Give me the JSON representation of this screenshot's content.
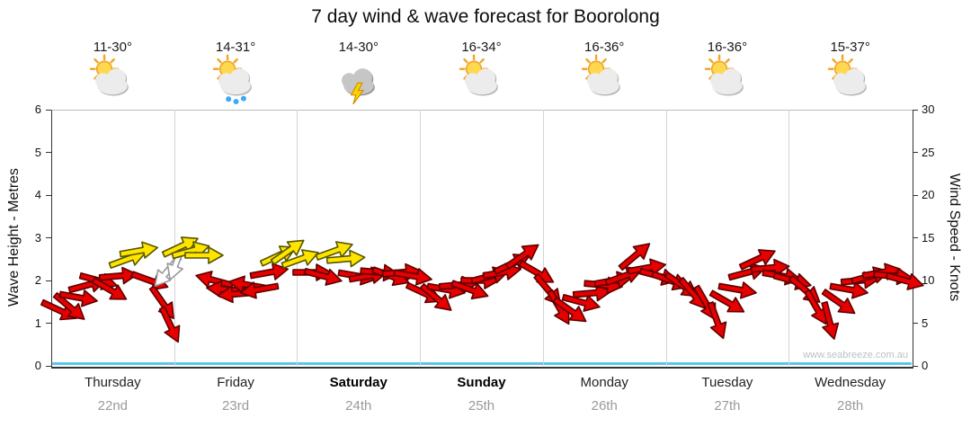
{
  "watermark": "www.seabreeze.com.au",
  "chart_data": {
    "type": "scatter",
    "subtype": "wind-arrow-forecast",
    "title": "7 day wind & wave forecast for Boorolong",
    "ylabel_left": "Wave Height - Metres",
    "ylim_left": [
      0,
      6
    ],
    "left_ticks": [
      0,
      1,
      2,
      3,
      4,
      5,
      6
    ],
    "ylabel_right": "Wind Speed - Knots",
    "ylim_right": [
      0,
      30
    ],
    "right_ticks": [
      0,
      5,
      10,
      15,
      20,
      25,
      30
    ],
    "grid": "vertical day separators only",
    "x_days": [
      {
        "name": "Thursday",
        "date": "22nd",
        "temp": "11-30°",
        "icon": "partly-cloudy",
        "bold": false
      },
      {
        "name": "Friday",
        "date": "23rd",
        "temp": "14-31°",
        "icon": "showers",
        "bold": false
      },
      {
        "name": "Saturday",
        "date": "24th",
        "temp": "14-30°",
        "icon": "storm",
        "bold": true
      },
      {
        "name": "Sunday",
        "date": "25th",
        "temp": "16-34°",
        "icon": "partly-cloudy",
        "bold": true
      },
      {
        "name": "Monday",
        "date": "26th",
        "temp": "16-36°",
        "icon": "partly-cloudy",
        "bold": false
      },
      {
        "name": "Tuesday",
        "date": "27th",
        "temp": "16-36°",
        "icon": "partly-cloudy",
        "bold": false
      },
      {
        "name": "Wednesday",
        "date": "28th",
        "temp": "15-37°",
        "icon": "partly-cloudy",
        "bold": false
      }
    ],
    "wave_height_m": {
      "shape": "flat",
      "value_m": 0.05
    },
    "wind_arrows": {
      "units": "knots",
      "point_format": "[t_days_from_start, speed_knots, direction_deg_cw_from_east, color_index]",
      "color_names": [
        "red",
        "yellow",
        "white"
      ],
      "color_styles": [
        {
          "fill": "#e60000",
          "stroke": "#5c0000"
        },
        {
          "fill": "#ffe400",
          "stroke": "#555500"
        },
        {
          "fill": "#ffffff",
          "stroke": "#999999"
        }
      ],
      "points": [
        [
          0.06,
          6.5,
          25,
          0
        ],
        [
          0.14,
          7,
          40,
          0
        ],
        [
          0.22,
          8,
          10,
          0
        ],
        [
          0.3,
          9.5,
          -15,
          0
        ],
        [
          0.38,
          10,
          15,
          0
        ],
        [
          0.47,
          9,
          30,
          0
        ],
        [
          0.55,
          10.5,
          -5,
          0
        ],
        [
          0.63,
          12.5,
          -20,
          1
        ],
        [
          0.72,
          13.5,
          -10,
          1
        ],
        [
          0.8,
          10,
          20,
          0
        ],
        [
          0.89,
          7.5,
          55,
          0
        ],
        [
          0.95,
          5,
          65,
          0
        ],
        [
          0.93,
          11.5,
          130,
          2
        ],
        [
          1.0,
          12.5,
          110,
          2
        ],
        [
          1.06,
          14,
          -25,
          1
        ],
        [
          1.14,
          13.5,
          -15,
          1
        ],
        [
          1.24,
          13,
          0,
          1
        ],
        [
          1.33,
          10.5,
          195,
          0
        ],
        [
          1.42,
          9.5,
          185,
          0
        ],
        [
          1.51,
          9,
          175,
          0
        ],
        [
          1.6,
          10,
          190,
          0
        ],
        [
          1.69,
          9.5,
          170,
          0
        ],
        [
          1.78,
          11,
          -10,
          0
        ],
        [
          1.86,
          13,
          -25,
          1
        ],
        [
          1.94,
          13.5,
          -35,
          1
        ],
        [
          2.03,
          12.5,
          -20,
          1
        ],
        [
          2.12,
          11,
          0,
          0
        ],
        [
          2.21,
          10.5,
          15,
          0
        ],
        [
          2.31,
          13.5,
          -20,
          1
        ],
        [
          2.4,
          12.5,
          -5,
          1
        ],
        [
          2.49,
          10.5,
          10,
          0
        ],
        [
          2.58,
          10.5,
          -10,
          0
        ],
        [
          2.67,
          11,
          5,
          0
        ],
        [
          2.76,
          10.5,
          20,
          0
        ],
        [
          2.85,
          11,
          -5,
          0
        ],
        [
          2.94,
          10.5,
          10,
          0
        ],
        [
          3.03,
          8.5,
          25,
          0
        ],
        [
          3.12,
          8,
          40,
          0
        ],
        [
          3.21,
          9,
          10,
          0
        ],
        [
          3.31,
          9.5,
          -5,
          0
        ],
        [
          3.4,
          9,
          20,
          0
        ],
        [
          3.49,
          10,
          0,
          0
        ],
        [
          3.58,
          10.5,
          -15,
          0
        ],
        [
          3.67,
          11,
          -10,
          0
        ],
        [
          3.76,
          12,
          -25,
          0
        ],
        [
          3.85,
          13,
          -35,
          0
        ],
        [
          3.94,
          11,
          30,
          0
        ],
        [
          4.03,
          9,
          50,
          0
        ],
        [
          4.12,
          7,
          60,
          0
        ],
        [
          4.21,
          6.5,
          35,
          0
        ],
        [
          4.31,
          7.5,
          15,
          0
        ],
        [
          4.4,
          8.5,
          -5,
          0
        ],
        [
          4.49,
          9.5,
          5,
          0
        ],
        [
          4.58,
          10,
          -10,
          0
        ],
        [
          4.67,
          10.5,
          -20,
          0
        ],
        [
          4.76,
          13,
          -40,
          0
        ],
        [
          4.85,
          11.5,
          -10,
          0
        ],
        [
          4.94,
          10.5,
          15,
          0
        ],
        [
          5.03,
          10,
          20,
          0
        ],
        [
          5.12,
          9.5,
          35,
          0
        ],
        [
          5.21,
          8.5,
          50,
          0
        ],
        [
          5.31,
          7.5,
          60,
          0
        ],
        [
          5.4,
          5.5,
          70,
          0
        ],
        [
          5.49,
          7.5,
          30,
          0
        ],
        [
          5.58,
          9,
          10,
          0
        ],
        [
          5.67,
          11,
          -15,
          0
        ],
        [
          5.76,
          12.5,
          -25,
          0
        ],
        [
          5.85,
          11.5,
          -5,
          0
        ],
        [
          5.94,
          10.5,
          10,
          0
        ],
        [
          6.03,
          10,
          15,
          0
        ],
        [
          6.12,
          9,
          40,
          0
        ],
        [
          6.21,
          7,
          60,
          0
        ],
        [
          6.31,
          5.5,
          75,
          0
        ],
        [
          6.4,
          7.5,
          35,
          0
        ],
        [
          6.49,
          9,
          10,
          0
        ],
        [
          6.58,
          10,
          -5,
          0
        ],
        [
          6.67,
          10.5,
          -15,
          0
        ],
        [
          6.76,
          11,
          -10,
          0
        ],
        [
          6.85,
          10.5,
          5,
          0
        ],
        [
          6.94,
          10,
          15,
          0
        ]
      ]
    }
  }
}
